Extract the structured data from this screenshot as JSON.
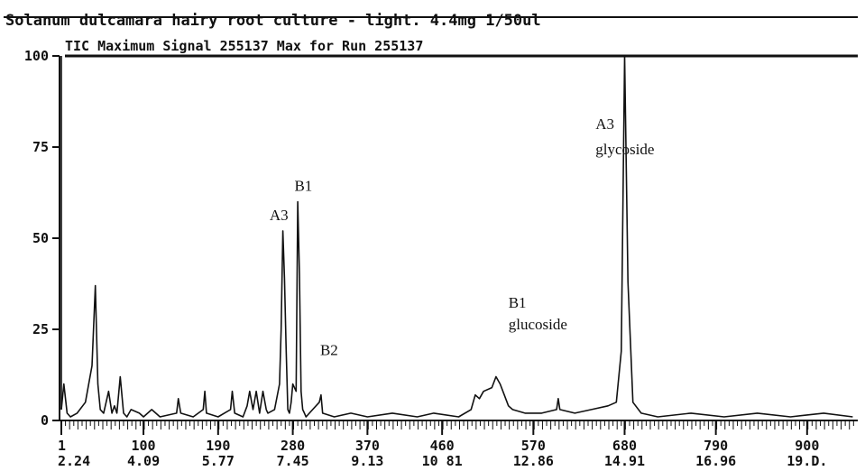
{
  "chart_data": {
    "type": "line",
    "title": "Solanum dulcamara hairy root culture - light. 4.4mg 1/50ul",
    "subtitle": "TIC Maximum Signal 255137 Max for Run 255137",
    "xlim": [
      1,
      960
    ],
    "ylim": [
      0,
      100
    ],
    "y_ticks": [
      "100",
      "75",
      "50",
      "25",
      "0"
    ],
    "x_ticks": [
      {
        "scan": "1",
        "time": "2.24"
      },
      {
        "scan": "100",
        "time": "4.09"
      },
      {
        "scan": "190",
        "time": "5.77"
      },
      {
        "scan": "280",
        "time": "7.45"
      },
      {
        "scan": "370",
        "time": "9.13"
      },
      {
        "scan": "460",
        "time": "10 81"
      },
      {
        "scan": "570",
        "time": "12.86"
      },
      {
        "scan": "680",
        "time": "14.91"
      },
      {
        "scan": "790",
        "time": "16.96"
      },
      {
        "scan": "900",
        "time": "19.D."
      }
    ],
    "series": [
      {
        "x": [
          1,
          4,
          8,
          12,
          20,
          30,
          38,
          42,
          45,
          48,
          52,
          58,
          62,
          65,
          68,
          72,
          76,
          80,
          85,
          95,
          100,
          110,
          120,
          140,
          142,
          145,
          160,
          172,
          174,
          176,
          190,
          205,
          207,
          210,
          220,
          225,
          228,
          232,
          236,
          240,
          244,
          248,
          250,
          258,
          264,
          266,
          268,
          270,
          272,
          274,
          276,
          278,
          280,
          284,
          286,
          288,
          290,
          292,
          294,
          296,
          300,
          312,
          314,
          316,
          330,
          350,
          370,
          400,
          430,
          450,
          480,
          495,
          500,
          505,
          510,
          520,
          525,
          530,
          535,
          540,
          545,
          560,
          580,
          598,
          600,
          602,
          620,
          640,
          660,
          670,
          676,
          680,
          684,
          690,
          700,
          720,
          760,
          800,
          840,
          880,
          920,
          955
        ],
        "y": [
          3,
          10,
          2,
          1,
          2,
          5,
          15,
          37,
          10,
          3,
          2,
          8,
          2,
          4,
          2,
          12,
          2,
          1,
          3,
          2,
          1,
          3,
          1,
          2,
          6,
          2,
          1,
          3,
          8,
          2,
          1,
          3,
          8,
          2,
          1,
          4,
          8,
          3,
          8,
          2,
          8,
          3,
          2,
          3,
          10,
          25,
          52,
          39,
          20,
          3,
          2,
          5,
          10,
          8,
          60,
          40,
          8,
          3,
          2,
          1,
          2,
          5,
          7,
          2,
          1,
          2,
          1,
          2,
          1,
          2,
          1,
          3,
          7,
          6,
          8,
          9,
          12,
          10,
          7,
          4,
          3,
          2,
          2,
          3,
          6,
          3,
          2,
          3,
          4,
          5,
          19,
          100,
          38,
          5,
          2,
          1,
          2,
          1,
          2,
          1,
          2,
          1
        ]
      }
    ],
    "annotations": [
      {
        "text": "A3",
        "x": 252,
        "y": 55
      },
      {
        "text": "B1",
        "x": 282,
        "y": 63
      },
      {
        "text": "B2",
        "x": 313,
        "y": 18
      },
      {
        "text": "B1",
        "x": 540,
        "y": 31
      },
      {
        "text": "glucoside",
        "x": 540,
        "y": 25
      },
      {
        "text": "A3",
        "x": 645,
        "y": 80
      },
      {
        "text": "glycoside",
        "x": 645,
        "y": 73
      }
    ]
  }
}
